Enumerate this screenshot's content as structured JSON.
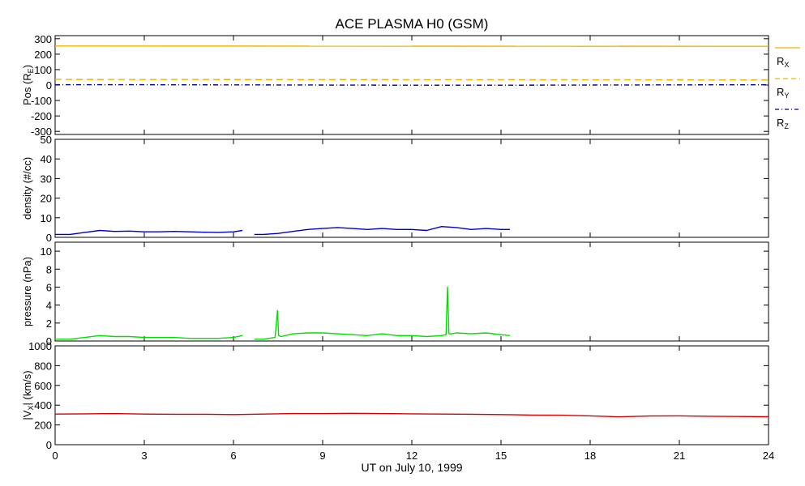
{
  "title": "ACE PLASMA H0 (GSM)",
  "colors": {
    "frame": "#000000",
    "rx": "#f0b400",
    "ry": "#f0b400",
    "rz": "#000088",
    "density": "#0000c0",
    "pressure": "#00e000",
    "vx": "#d40000"
  },
  "chart_data": {
    "type": "line",
    "xlabel": "UT on July 10, 1999",
    "xlim": [
      0,
      24
    ],
    "xticks": [
      "0",
      "3",
      "6",
      "9",
      "12",
      "15",
      "18",
      "21",
      "24"
    ],
    "panels": [
      {
        "id": "position",
        "ylabel_parts": {
          "main": "Pos (R",
          "sub": "E",
          "end": ")"
        },
        "ylim": [
          -320,
          320
        ],
        "yticks": [
          "300",
          "200",
          "100",
          "0",
          "-100",
          "-200",
          "-300"
        ],
        "series": [
          {
            "name": "R",
            "sub": "X",
            "style": "solid",
            "x": [
              0,
              24
            ],
            "y": [
              253,
              251
            ]
          },
          {
            "name": "R",
            "sub": "Y",
            "style": "dashed",
            "x": [
              0,
              24
            ],
            "y": [
              36,
              33
            ]
          },
          {
            "name": "R",
            "sub": "Z",
            "style": "dashdot",
            "x": [
              0,
              3,
              6,
              9,
              12,
              15,
              18,
              21,
              24
            ],
            "y": [
              2,
              2,
              1,
              0,
              -1,
              -1,
              0,
              1,
              2
            ]
          }
        ]
      },
      {
        "id": "density",
        "ylabel": "density (#/cc)",
        "ylim": [
          0,
          50
        ],
        "yticks": [
          "50",
          "40",
          "30",
          "20",
          "10",
          "0"
        ],
        "series": [
          {
            "x": [
              0,
              0.5,
              1,
              1.5,
              2,
              2.5,
              3,
              3.5,
              4,
              4.5,
              5,
              5.5,
              6,
              6.3
            ],
            "y": [
              1.5,
              1.5,
              2.5,
              3.5,
              3.0,
              3.2,
              2.8,
              2.8,
              3.0,
              2.8,
              2.6,
              2.5,
              2.8,
              3.5
            ]
          },
          {
            "x": [
              6.7,
              7,
              7.5,
              8,
              8.5,
              9,
              9.5,
              10,
              10.5,
              11,
              11.5,
              12,
              12.5,
              13,
              13.5,
              14,
              14.5,
              15,
              15.3
            ],
            "y": [
              1.5,
              1.5,
              2.0,
              3.0,
              4.0,
              4.5,
              5.0,
              4.5,
              4.0,
              4.5,
              4.0,
              4.0,
              3.5,
              5.5,
              5.0,
              4.0,
              4.5,
              4.0,
              4.0
            ]
          }
        ]
      },
      {
        "id": "pressure",
        "ylabel": "pressure (nPa)",
        "ylim": [
          0,
          11
        ],
        "yticks": [
          "10",
          "8",
          "6",
          "4",
          "2",
          "0"
        ],
        "series": [
          {
            "x": [
              0,
              0.5,
              1,
              1.5,
              2,
              2.5,
              3,
              3.5,
              4,
              4.5,
              5,
              5.5,
              6,
              6.3
            ],
            "y": [
              0.2,
              0.2,
              0.4,
              0.6,
              0.5,
              0.5,
              0.4,
              0.4,
              0.4,
              0.3,
              0.3,
              0.3,
              0.4,
              0.6
            ]
          },
          {
            "x": [
              6.7,
              7,
              7.4,
              7.48,
              7.52,
              7.6,
              8,
              8.5,
              9,
              9.5,
              10,
              10.5,
              11,
              11.5,
              12,
              12.5,
              13,
              13.15,
              13.2,
              13.25,
              13.35,
              13.5,
              14,
              14.5,
              15,
              15.3
            ],
            "y": [
              0.2,
              0.2,
              0.4,
              3.4,
              0.6,
              0.5,
              0.8,
              0.9,
              0.9,
              0.8,
              0.7,
              0.6,
              0.8,
              0.6,
              0.6,
              0.5,
              0.6,
              0.7,
              6.0,
              0.8,
              0.8,
              0.9,
              0.8,
              0.9,
              0.7,
              0.6
            ]
          }
        ]
      },
      {
        "id": "vx",
        "ylabel_parts": {
          "main": "|V",
          "sub": "X",
          "end": "| (km/s)"
        },
        "ylim": [
          0,
          1000
        ],
        "yticks": [
          "1000",
          "800",
          "600",
          "400",
          "200",
          "0"
        ],
        "series": [
          {
            "x": [
              0,
              1,
              2,
              3,
              4,
              5,
              6,
              7,
              8,
              9,
              10,
              11,
              12,
              13,
              14,
              15,
              16,
              17,
              18,
              19,
              20,
              21,
              22,
              23,
              24
            ],
            "y": [
              310,
              312,
              315,
              310,
              308,
              308,
              305,
              310,
              315,
              315,
              317,
              315,
              312,
              310,
              308,
              305,
              300,
              298,
              292,
              282,
              290,
              292,
              288,
              285,
              283
            ]
          }
        ]
      }
    ]
  }
}
